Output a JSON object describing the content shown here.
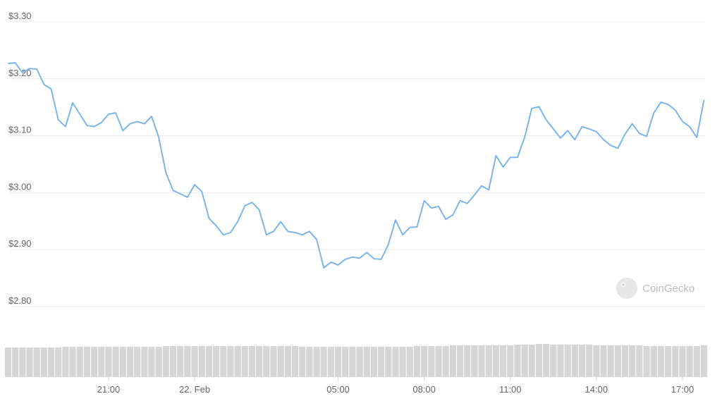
{
  "chart_data": {
    "type": "line",
    "watermark": "CoinGecko",
    "xlim": [
      -6.5,
      17.8
    ],
    "xticks": [
      {
        "value": -3,
        "label": "21:00"
      },
      {
        "value": 0,
        "label": "22. Feb"
      },
      {
        "value": 5,
        "label": "05:00"
      },
      {
        "value": 8,
        "label": "08:00"
      },
      {
        "value": 11,
        "label": "11:00"
      },
      {
        "value": 14,
        "label": "14:00"
      },
      {
        "value": 17,
        "label": "17:00"
      }
    ],
    "ylim": [
      2.8,
      3.3
    ],
    "yticks": [
      {
        "value": 2.8,
        "label": "$2.80"
      },
      {
        "value": 2.9,
        "label": "$2.90"
      },
      {
        "value": 3.0,
        "label": "$3.00"
      },
      {
        "value": 3.1,
        "label": "$3.10"
      },
      {
        "value": 3.2,
        "label": "$3.20"
      },
      {
        "value": 3.3,
        "label": "$3.30"
      }
    ],
    "grid": true,
    "x": [
      -6.5,
      -6.25,
      -6.0,
      -5.75,
      -5.5,
      -5.25,
      -5.0,
      -4.75,
      -4.5,
      -4.25,
      -4.0,
      -3.75,
      -3.5,
      -3.25,
      -3.0,
      -2.75,
      -2.5,
      -2.25,
      -2.0,
      -1.75,
      -1.5,
      -1.25,
      -1.0,
      -0.75,
      -0.5,
      -0.25,
      0,
      0.25,
      0.5,
      0.75,
      1.0,
      1.25,
      1.5,
      1.75,
      2.0,
      2.25,
      2.5,
      2.75,
      3.0,
      3.25,
      3.5,
      3.75,
      4.0,
      4.25,
      4.5,
      4.75,
      5.0,
      5.25,
      5.5,
      5.75,
      6.0,
      6.25,
      6.5,
      6.75,
      7.0,
      7.25,
      7.5,
      7.75,
      8.0,
      8.25,
      8.5,
      8.75,
      9.0,
      9.25,
      9.5,
      9.75,
      10.0,
      10.25,
      10.5,
      10.75,
      11.0,
      11.25,
      11.5,
      11.75,
      12.0,
      12.25,
      12.5,
      12.75,
      13.0,
      13.25,
      13.5,
      13.75,
      14.0,
      14.25,
      14.5,
      14.75,
      15.0,
      15.25,
      15.5,
      15.75,
      16.0,
      16.25,
      16.5,
      16.75,
      17.0,
      17.25,
      17.5,
      17.75
    ],
    "series": [
      {
        "color": "#7cb5ec",
        "values": [
          3.227,
          3.228,
          3.211,
          3.218,
          3.217,
          3.19,
          3.182,
          3.128,
          3.116,
          3.158,
          3.138,
          3.118,
          3.116,
          3.123,
          3.138,
          3.14,
          3.109,
          3.121,
          3.125,
          3.121,
          3.134,
          3.097,
          3.035,
          3.004,
          2.998,
          2.992,
          3.014,
          3.002,
          2.955,
          2.942,
          2.926,
          2.93,
          2.949,
          2.977,
          2.983,
          2.97,
          2.926,
          2.932,
          2.949,
          2.932,
          2.93,
          2.926,
          2.932,
          2.918,
          2.868,
          2.878,
          2.873,
          2.883,
          2.887,
          2.885,
          2.895,
          2.884,
          2.883,
          2.909,
          2.952,
          2.926,
          2.939,
          2.94,
          2.986,
          2.973,
          2.976,
          2.953,
          2.961,
          2.986,
          2.981,
          2.996,
          3.012,
          3.005,
          3.065,
          3.045,
          3.062,
          3.062,
          3.097,
          3.148,
          3.151,
          3.128,
          3.112,
          3.096,
          3.109,
          3.093,
          3.116,
          3.112,
          3.107,
          3.093,
          3.083,
          3.078,
          3.103,
          3.121,
          3.104,
          3.099,
          3.14,
          3.159,
          3.155,
          3.145,
          3.125,
          3.116,
          3.097,
          3.163
        ]
      },
      {
        "color": "#d6d6d6",
        "values": [
          42,
          42,
          42,
          42,
          42,
          42,
          42,
          42,
          43,
          43,
          43,
          43,
          43,
          43,
          43,
          43,
          43,
          43,
          43,
          43,
          43,
          43,
          44,
          44,
          44,
          44,
          44,
          44,
          44,
          44,
          44,
          44,
          44,
          44,
          44,
          44,
          44,
          44,
          44,
          44,
          44,
          43,
          43,
          43,
          43,
          43,
          43,
          43,
          43,
          43,
          43,
          43,
          43,
          43,
          43,
          43,
          43,
          44,
          44,
          44,
          44,
          44,
          45,
          45,
          45,
          45,
          45,
          45,
          45,
          45,
          45,
          46,
          46,
          46,
          47,
          47,
          46,
          46,
          46,
          46,
          46,
          46,
          45,
          45,
          45,
          45,
          45,
          45,
          45,
          44,
          44,
          44,
          44,
          44,
          44,
          44,
          44,
          45
        ]
      }
    ]
  }
}
